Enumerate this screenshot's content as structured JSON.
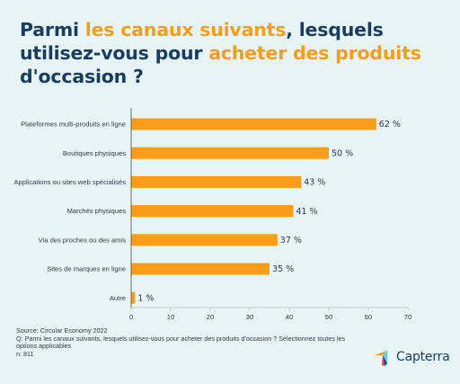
{
  "title": {
    "parts": [
      {
        "text": "Parmi ",
        "highlight": false
      },
      {
        "text": "les canaux suivants",
        "highlight": true
      },
      {
        "text": ", lesquels utilisez-vous pour ",
        "highlight": false
      },
      {
        "text": "acheter des produits",
        "highlight": true
      },
      {
        "text": " d'occasion ?",
        "highlight": false
      }
    ],
    "color": "#1a3c5e",
    "highlight_color": "#f99d1b"
  },
  "chart_data": {
    "type": "bar",
    "orientation": "horizontal",
    "categories": [
      "Plateformes multi-produits en ligne",
      "Boutiques physiques",
      "Applications ou sites web spécialisés",
      "Marchés physiques",
      "Via des proches ou des amis",
      "Sites de marques en ligne",
      "Autre"
    ],
    "values": [
      62,
      50,
      43,
      41,
      37,
      35,
      1
    ],
    "value_labels": [
      "62 %",
      "50 %",
      "43 %",
      "41 %",
      "37 %",
      "35 %",
      "1 %"
    ],
    "xlim": [
      0,
      70
    ],
    "xticks": [
      0,
      10,
      20,
      30,
      40,
      50,
      60,
      70
    ],
    "bar_color": "#f99d1b",
    "grid": false,
    "title": "",
    "xlabel": "",
    "ylabel": ""
  },
  "footer": {
    "source": "Source: Circular Economy 2022",
    "question": "Q:  Parmi les canaux suivants, lesquels utilisez-vous pour acheter des produits d'occasion ? Sélectionnez toutes les options applicables",
    "n": "n: 811"
  },
  "logo": {
    "text": "Capterra",
    "icon": "capterra-arrow-icon",
    "colors": [
      "#ff9d28",
      "#68c5ed",
      "#044d80",
      "#e54747"
    ]
  },
  "background": "#e7f4f6"
}
